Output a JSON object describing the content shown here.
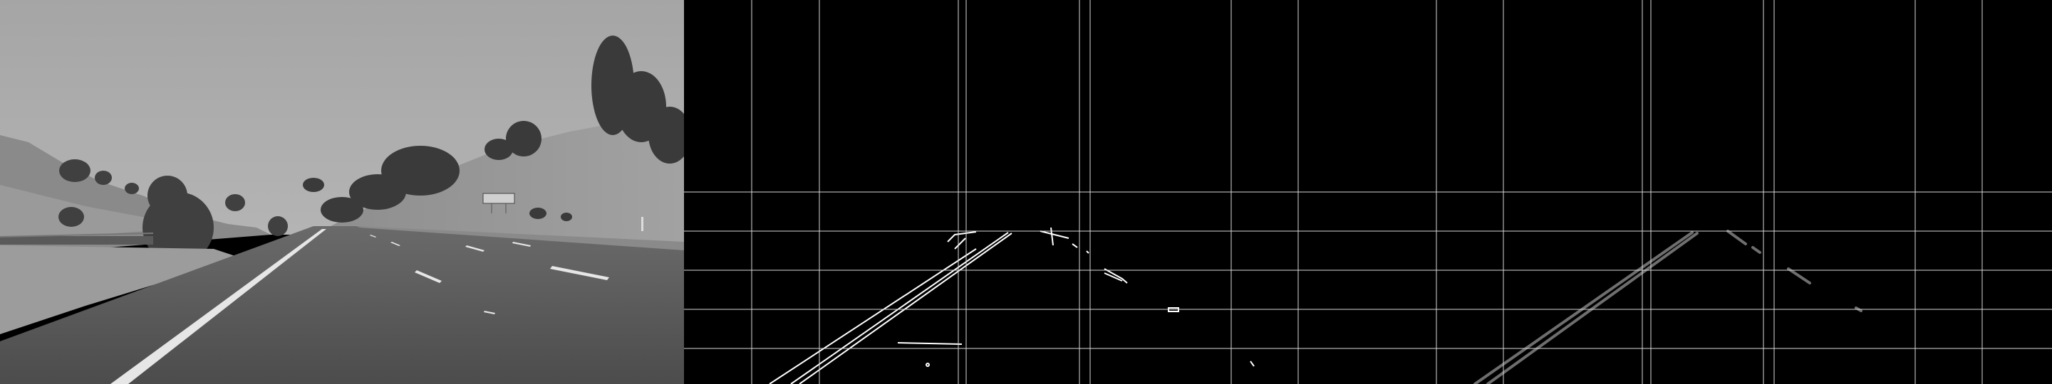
{
  "panels": [
    {
      "id": "grayscale-road-panel",
      "kind": "grayscale-photo"
    },
    {
      "id": "canny-edges-panel",
      "kind": "edge-map"
    },
    {
      "id": "hough-lines-panel",
      "kind": "line-detection"
    }
  ],
  "colors": {
    "background": "#000000",
    "sky": "#a9a9a9",
    "hill": "#8a8a8a",
    "road": "#555555",
    "grid": "#d8d8d8",
    "edge": "#ffffff",
    "detected_line": "#6e6e6e",
    "tree": "#3c3c3c"
  },
  "sign_text": ""
}
